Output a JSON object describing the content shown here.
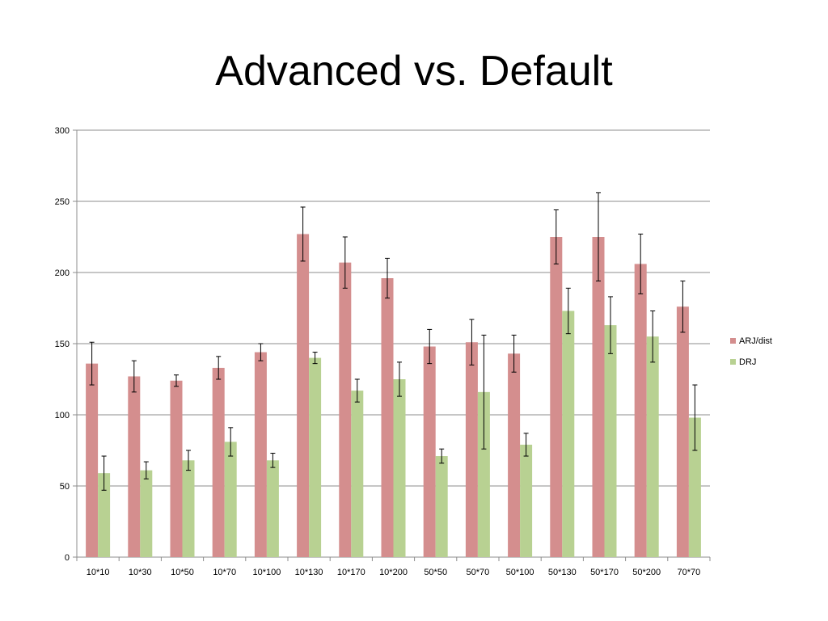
{
  "slide": {
    "title": "Advanced vs. Default"
  },
  "chart_data": {
    "type": "bar",
    "title": "Advanced vs. Default",
    "xlabel": "",
    "ylabel": "",
    "ylim": [
      0,
      300
    ],
    "yticks": [
      0,
      50,
      100,
      150,
      200,
      250,
      300
    ],
    "grid": true,
    "legend_position": "right",
    "categories": [
      "10*10",
      "10*30",
      "10*50",
      "10*70",
      "10*100",
      "10*130",
      "10*170",
      "10*200",
      "50*50",
      "50*70",
      "50*100",
      "50*130",
      "50*170",
      "50*200",
      "70*70"
    ],
    "series": [
      {
        "name": "ARJ/dist",
        "color": "#d48e8e",
        "values": [
          136,
          127,
          124,
          133,
          144,
          227,
          207,
          196,
          148,
          151,
          143,
          225,
          225,
          206,
          176
        ],
        "error": [
          15,
          11,
          4,
          8,
          6,
          19,
          18,
          14,
          12,
          16,
          13,
          19,
          31,
          21,
          18
        ]
      },
      {
        "name": "DRJ",
        "color": "#b8d192",
        "values": [
          59,
          61,
          68,
          81,
          68,
          140,
          117,
          125,
          71,
          116,
          79,
          173,
          163,
          155,
          98
        ],
        "error": [
          12,
          6,
          7,
          10,
          5,
          4,
          8,
          12,
          5,
          40,
          8,
          16,
          20,
          18,
          23
        ]
      }
    ]
  }
}
